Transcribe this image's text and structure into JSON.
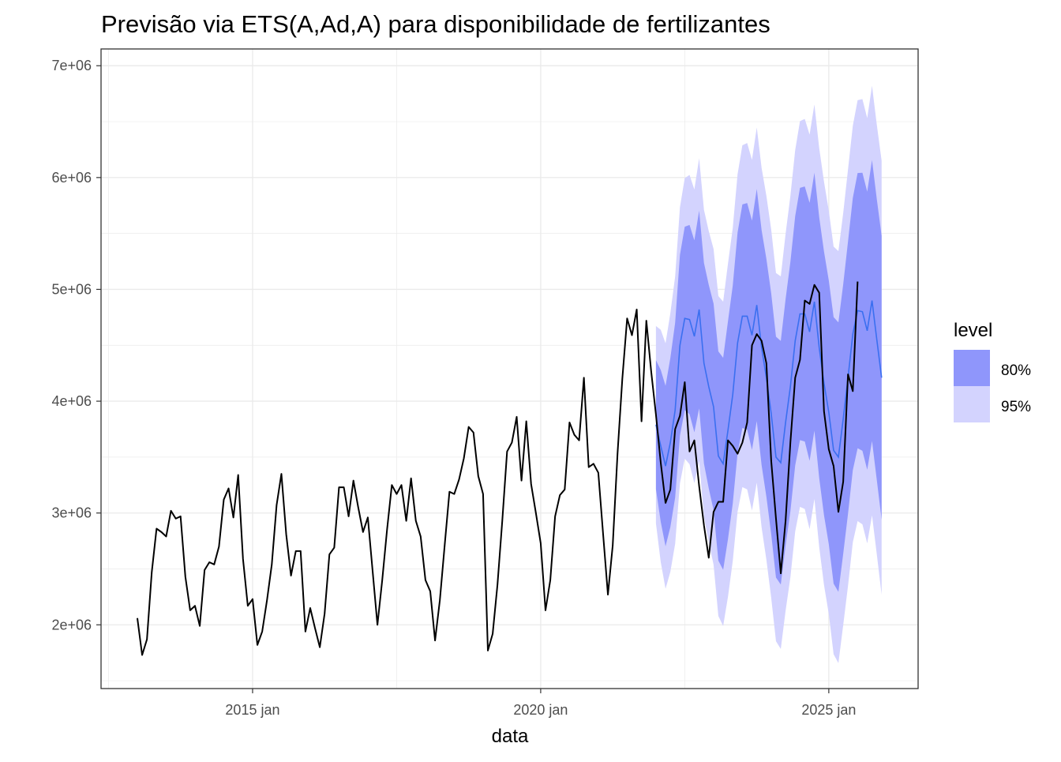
{
  "chart_data": {
    "type": "line",
    "title": "Previsão via ETS(A,Ad,A) para disponibilidade de fertilizantes",
    "xlabel": "data",
    "ylabel": "",
    "scale": 1000000,
    "x_range_years": [
      2012.37,
      2026.55
    ],
    "ylim": [
      1430000,
      7150000
    ],
    "grid": true,
    "y_ticks": [
      {
        "value": 2000000,
        "label": "2e+06"
      },
      {
        "value": 3000000,
        "label": "3e+06"
      },
      {
        "value": 4000000,
        "label": "4e+06"
      },
      {
        "value": 5000000,
        "label": "5e+06"
      },
      {
        "value": 6000000,
        "label": "6e+06"
      },
      {
        "value": 7000000,
        "label": "7e+06"
      }
    ],
    "x_ticks": [
      {
        "value": 2015.0,
        "label": "2015 jan"
      },
      {
        "value": 2020.0,
        "label": "2020 jan"
      },
      {
        "value": 2025.0,
        "label": "2025 jan"
      }
    ],
    "observed": {
      "start": "2013-01",
      "frequency": "monthly",
      "color": "#000000",
      "values_millions": [
        2.06,
        1.73,
        1.87,
        2.47,
        2.86,
        2.83,
        2.79,
        3.02,
        2.95,
        2.97,
        2.43,
        2.13,
        2.17,
        1.99,
        2.49,
        2.56,
        2.54,
        2.7,
        3.12,
        3.22,
        2.96,
        3.34,
        2.59,
        2.17,
        2.23,
        1.82,
        1.94,
        2.22,
        2.54,
        3.07,
        3.35,
        2.81,
        2.44,
        2.66,
        2.66,
        1.94,
        2.15,
        1.97,
        1.8,
        2.1,
        2.63,
        2.69,
        3.23,
        3.23,
        2.97,
        3.29,
        3.05,
        2.83,
        2.96,
        2.48,
        2.0,
        2.4,
        2.85,
        3.25,
        3.17,
        3.25,
        2.93,
        3.31,
        2.93,
        2.79,
        2.4,
        2.3,
        1.86,
        2.22,
        2.71,
        3.19,
        3.17,
        3.3,
        3.49,
        3.77,
        3.72,
        3.33,
        3.17,
        1.77,
        1.92,
        2.36,
        2.93,
        3.55,
        3.63,
        3.86,
        3.29,
        3.82,
        3.26,
        3.0,
        2.73,
        2.13,
        2.4,
        2.97,
        3.16,
        3.21,
        3.81,
        3.7,
        3.65,
        4.21,
        3.41,
        3.44,
        3.36,
        2.81,
        2.27,
        2.71,
        3.53,
        4.2,
        4.74,
        4.59,
        4.82,
        3.82,
        4.72,
        4.27,
        3.88,
        3.45,
        3.09,
        3.21,
        3.75,
        3.87,
        4.17,
        3.55,
        3.65,
        3.24,
        2.89,
        2.6,
        3.01,
        3.1,
        3.1,
        3.65,
        3.6,
        3.53,
        3.63,
        3.81,
        4.5,
        4.6,
        4.54,
        4.34,
        3.47,
        2.95,
        2.46,
        2.93,
        3.63,
        4.21,
        4.37,
        4.9,
        4.87,
        5.04,
        4.97,
        3.91,
        3.57,
        3.42,
        3.01,
        3.28,
        4.24,
        4.09,
        5.07
      ]
    },
    "forecast": {
      "start": "2022-01",
      "frequency": "monthly",
      "model": "ETS(A,Ad,A)",
      "mean_color": "#3a6ff0",
      "mean_millions": [
        3.79,
        3.6,
        3.42,
        3.63,
        3.92,
        4.5,
        4.74,
        4.73,
        4.58,
        4.82,
        4.34,
        4.13,
        3.95,
        3.51,
        3.44,
        3.74,
        4.06,
        4.52,
        4.76,
        4.76,
        4.59,
        4.86,
        4.48,
        4.21,
        3.89,
        3.5,
        3.45,
        3.81,
        4.13,
        4.54,
        4.78,
        4.78,
        4.62,
        4.89,
        4.48,
        4.16,
        3.9,
        3.56,
        3.5,
        3.84,
        4.21,
        4.6,
        4.81,
        4.8,
        4.63,
        4.9,
        4.55,
        4.21
      ],
      "se_millions": [
        0.45,
        0.53,
        0.56,
        0.59,
        0.61,
        0.63,
        0.64,
        0.66,
        0.67,
        0.69,
        0.7,
        0.71,
        0.72,
        0.73,
        0.74,
        0.76,
        0.76,
        0.77,
        0.78,
        0.79,
        0.8,
        0.81,
        0.82,
        0.83,
        0.84,
        0.84,
        0.85,
        0.86,
        0.87,
        0.87,
        0.88,
        0.89,
        0.9,
        0.9,
        0.91,
        0.92,
        0.92,
        0.93,
        0.94,
        0.94,
        0.95,
        0.95,
        0.96,
        0.97,
        0.97,
        0.98,
        0.98,
        0.99
      ],
      "levels": [
        {
          "label": "80%",
          "z": 1.2816,
          "color": "#8f96fb"
        },
        {
          "label": "95%",
          "z": 1.96,
          "color": "#d3d3fe"
        }
      ]
    },
    "legend": {
      "title": "level",
      "placement": "right"
    }
  }
}
